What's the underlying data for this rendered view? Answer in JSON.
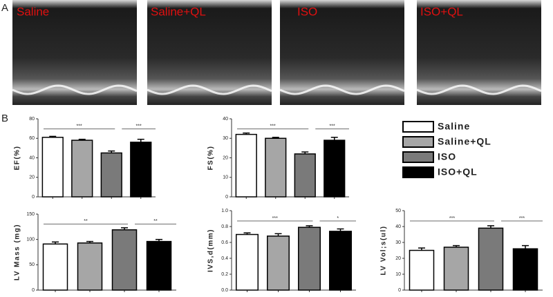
{
  "panel_a": {
    "label": "A",
    "images": [
      {
        "label": "Saline"
      },
      {
        "label": "Saline+QL"
      },
      {
        "label": "ISO"
      },
      {
        "label": "ISO+QL"
      }
    ]
  },
  "panel_b": {
    "label": "B"
  },
  "legend": {
    "entries": [
      {
        "name": "Saline",
        "color": "#ffffff"
      },
      {
        "name": "Saline+QL",
        "color": "#a6a6a6"
      },
      {
        "name": "ISO",
        "color": "#7a7a7a"
      },
      {
        "name": "ISO+QL",
        "color": "#000000"
      }
    ]
  },
  "chart_data": [
    {
      "type": "bar",
      "ylabel": "EF(%)",
      "categories": [
        null,
        null,
        null,
        null
      ],
      "values": [
        61,
        58,
        45,
        56
      ],
      "errors": [
        1,
        1,
        2,
        3
      ],
      "ylim": [
        0,
        80
      ],
      "yticks": [
        0,
        20,
        40,
        60,
        80
      ],
      "significance": [
        "***",
        "***"
      ]
    },
    {
      "type": "bar",
      "ylabel": "FS(%)",
      "categories": [
        null,
        null,
        null,
        null
      ],
      "values": [
        32,
        30,
        22,
        29
      ],
      "errors": [
        0.7,
        0.5,
        1,
        1.5
      ],
      "ylim": [
        0,
        40
      ],
      "yticks": [
        0,
        10,
        20,
        30,
        40
      ],
      "significance": [
        "***",
        "***"
      ]
    },
    {
      "type": "bar",
      "ylabel": "LV Mass (mg)",
      "categories": [
        null,
        null,
        null,
        null
      ],
      "values": [
        91,
        93,
        119,
        96
      ],
      "errors": [
        4,
        3,
        4,
        4
      ],
      "ylim": [
        0,
        150
      ],
      "yticks": [
        0,
        50,
        100,
        150
      ],
      "significance": [
        "**",
        "**"
      ]
    },
    {
      "type": "bar",
      "ylabel": "IVS,d(mm)",
      "categories": [
        null,
        null,
        null,
        null
      ],
      "values": [
        0.7,
        0.68,
        0.79,
        0.74
      ],
      "errors": [
        0.02,
        0.03,
        0.02,
        0.03
      ],
      "ylim": [
        0,
        1
      ],
      "yticks": [
        {
          "value": 0,
          "label": "0.0"
        },
        0.2,
        0.4,
        0.6,
        0.8,
        {
          "value": 1,
          "label": "1.0"
        }
      ],
      "significance": [
        "***",
        "*"
      ]
    },
    {
      "type": "bar",
      "ylabel": "LV Vol;s(ul)",
      "categories": [
        null,
        null,
        null,
        null
      ],
      "values": [
        25,
        27,
        39,
        26
      ],
      "errors": [
        1.5,
        1,
        1.5,
        2
      ],
      "ylim": [
        0,
        50
      ],
      "yticks": [
        0,
        10,
        20,
        30,
        40,
        50
      ],
      "significance": [
        "***",
        "***"
      ]
    }
  ]
}
